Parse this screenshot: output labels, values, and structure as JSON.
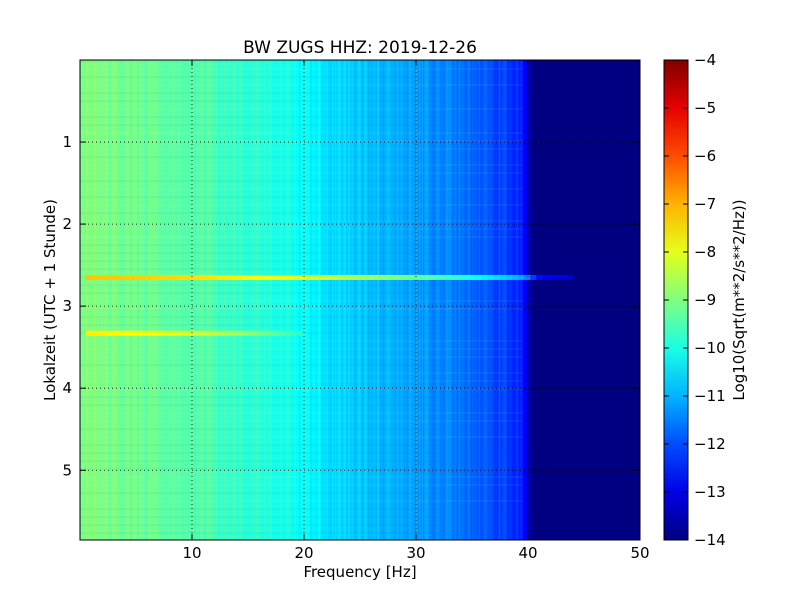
{
  "chart_data": {
    "type": "heatmap",
    "title": "BW ZUGS HHZ: 2019-12-26",
    "xlabel": "Frequency [Hz]",
    "ylabel": "Lokalzeit (UTC + 1 Stunde)",
    "xlim": [
      0,
      50
    ],
    "ylim": [
      5.85,
      0
    ],
    "x_ticks": [
      10,
      20,
      30,
      40,
      50
    ],
    "y_ticks": [
      1,
      2,
      3,
      4,
      5
    ],
    "grid": true,
    "colormap": "jet",
    "colorbar": {
      "label": "Log10(Sqrt(m**2/s**2/Hz))",
      "range": [
        -14,
        -4
      ],
      "ticks": [
        -4,
        -5,
        -6,
        -7,
        -8,
        -9,
        -10,
        -11,
        -12,
        -13,
        -14
      ]
    },
    "spectral_profile": {
      "frequency_hz": [
        0,
        2,
        5,
        10,
        15,
        20,
        25,
        30,
        34,
        36,
        38,
        39.5,
        40.5,
        50
      ],
      "log10_amplitude": [
        -9.0,
        -9.0,
        -9.2,
        -9.4,
        -9.8,
        -10.2,
        -10.8,
        -11.2,
        -11.6,
        -11.9,
        -12.1,
        -12.4,
        -14.0,
        -14.0
      ]
    },
    "events": [
      {
        "time": 2.65,
        "log10_amplitude_peak": -7.2,
        "freq_range_hz": [
          0.5,
          44
        ]
      },
      {
        "time": 3.33,
        "log10_amplitude_peak": -7.6,
        "freq_range_hz": [
          0.5,
          20
        ]
      }
    ]
  }
}
